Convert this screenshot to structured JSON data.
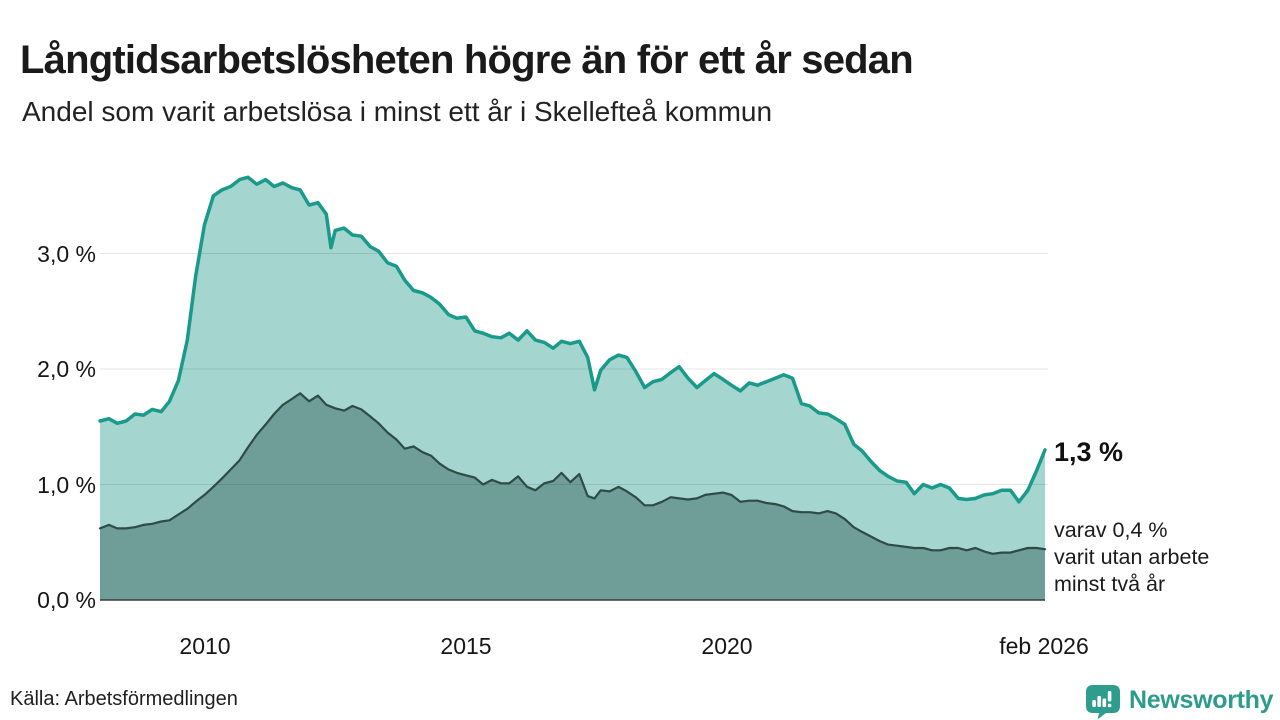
{
  "header": {
    "title": "Långtidsarbetslösheten högre än för ett år sedan",
    "subtitle": "Andel som varit arbetslösa i minst ett år i Skellefteå kommun"
  },
  "footer": {
    "source": "Källa: Arbetsförmedlingen",
    "brand": "Newsworthy",
    "brand_color": "#2e9c8d"
  },
  "chart_data": {
    "type": "area",
    "title": "Långtidsarbetslösheten högre än för ett år sedan",
    "subtitle": "Andel som varit arbetslösa i minst ett år i Skellefteå kommun",
    "unit": "%",
    "x_domain": [
      2008.0,
      2026.08
    ],
    "ylim": [
      0,
      3.8
    ],
    "grid": true,
    "y_gridlines": [
      1.0,
      2.0,
      3.0
    ],
    "yticks": [
      {
        "value": 3.0,
        "label": "3,0 %"
      },
      {
        "value": 2.0,
        "label": "2,0 %"
      },
      {
        "value": 1.0,
        "label": "1,0 %"
      },
      {
        "value": 0.0,
        "label": "0,0 %"
      }
    ],
    "xticks": [
      {
        "value": 2010,
        "label": "2010"
      },
      {
        "value": 2015,
        "label": "2015"
      },
      {
        "value": 2020,
        "label": "2020"
      },
      {
        "value": 2026.08,
        "label": "feb 2026"
      }
    ],
    "annotations": {
      "latest_total": "1,3 %",
      "secondary_lines": [
        "varav 0,4 %",
        "varit utan arbete",
        "minst två år"
      ]
    },
    "series": [
      {
        "name": "Arbetslösa minst ett år",
        "line_color": "#199a8b",
        "fill_color": "#a4d5ce",
        "line_width": 3.5,
        "latest_value": 1.3,
        "points": [
          [
            2008.0,
            1.55
          ],
          [
            2008.17,
            1.57
          ],
          [
            2008.33,
            1.53
          ],
          [
            2008.5,
            1.55
          ],
          [
            2008.67,
            1.61
          ],
          [
            2008.83,
            1.6
          ],
          [
            2009.0,
            1.65
          ],
          [
            2009.17,
            1.63
          ],
          [
            2009.33,
            1.72
          ],
          [
            2009.5,
            1.9
          ],
          [
            2009.67,
            2.25
          ],
          [
            2009.83,
            2.8
          ],
          [
            2010.0,
            3.25
          ],
          [
            2010.17,
            3.5
          ],
          [
            2010.33,
            3.55
          ],
          [
            2010.5,
            3.58
          ],
          [
            2010.67,
            3.64
          ],
          [
            2010.83,
            3.66
          ],
          [
            2011.0,
            3.6
          ],
          [
            2011.17,
            3.64
          ],
          [
            2011.33,
            3.58
          ],
          [
            2011.5,
            3.61
          ],
          [
            2011.67,
            3.57
          ],
          [
            2011.83,
            3.55
          ],
          [
            2012.0,
            3.42
          ],
          [
            2012.17,
            3.44
          ],
          [
            2012.33,
            3.34
          ],
          [
            2012.42,
            3.05
          ],
          [
            2012.5,
            3.2
          ],
          [
            2012.67,
            3.22
          ],
          [
            2012.83,
            3.16
          ],
          [
            2013.0,
            3.15
          ],
          [
            2013.17,
            3.06
          ],
          [
            2013.33,
            3.02
          ],
          [
            2013.5,
            2.92
          ],
          [
            2013.67,
            2.89
          ],
          [
            2013.83,
            2.77
          ],
          [
            2014.0,
            2.68
          ],
          [
            2014.17,
            2.66
          ],
          [
            2014.33,
            2.62
          ],
          [
            2014.5,
            2.56
          ],
          [
            2014.67,
            2.47
          ],
          [
            2014.83,
            2.44
          ],
          [
            2015.0,
            2.45
          ],
          [
            2015.17,
            2.33
          ],
          [
            2015.33,
            2.31
          ],
          [
            2015.5,
            2.28
          ],
          [
            2015.67,
            2.27
          ],
          [
            2015.83,
            2.31
          ],
          [
            2016.0,
            2.25
          ],
          [
            2016.17,
            2.33
          ],
          [
            2016.33,
            2.25
          ],
          [
            2016.5,
            2.23
          ],
          [
            2016.67,
            2.18
          ],
          [
            2016.83,
            2.24
          ],
          [
            2017.0,
            2.22
          ],
          [
            2017.17,
            2.24
          ],
          [
            2017.33,
            2.1
          ],
          [
            2017.46,
            1.82
          ],
          [
            2017.58,
            1.99
          ],
          [
            2017.75,
            2.08
          ],
          [
            2017.92,
            2.12
          ],
          [
            2018.08,
            2.1
          ],
          [
            2018.25,
            1.98
          ],
          [
            2018.42,
            1.84
          ],
          [
            2018.58,
            1.89
          ],
          [
            2018.75,
            1.91
          ],
          [
            2018.92,
            1.97
          ],
          [
            2019.08,
            2.02
          ],
          [
            2019.25,
            1.92
          ],
          [
            2019.42,
            1.84
          ],
          [
            2019.58,
            1.9
          ],
          [
            2019.75,
            1.96
          ],
          [
            2019.92,
            1.91
          ],
          [
            2020.08,
            1.86
          ],
          [
            2020.25,
            1.81
          ],
          [
            2020.42,
            1.88
          ],
          [
            2020.58,
            1.86
          ],
          [
            2020.75,
            1.89
          ],
          [
            2020.92,
            1.92
          ],
          [
            2021.08,
            1.95
          ],
          [
            2021.25,
            1.92
          ],
          [
            2021.42,
            1.7
          ],
          [
            2021.58,
            1.68
          ],
          [
            2021.75,
            1.62
          ],
          [
            2021.92,
            1.61
          ],
          [
            2022.08,
            1.57
          ],
          [
            2022.25,
            1.52
          ],
          [
            2022.42,
            1.35
          ],
          [
            2022.58,
            1.29
          ],
          [
            2022.75,
            1.2
          ],
          [
            2022.92,
            1.12
          ],
          [
            2023.08,
            1.07
          ],
          [
            2023.25,
            1.03
          ],
          [
            2023.42,
            1.02
          ],
          [
            2023.58,
            0.92
          ],
          [
            2023.75,
            1.0
          ],
          [
            2023.92,
            0.97
          ],
          [
            2024.08,
            1.0
          ],
          [
            2024.25,
            0.97
          ],
          [
            2024.42,
            0.88
          ],
          [
            2024.58,
            0.87
          ],
          [
            2024.75,
            0.88
          ],
          [
            2024.92,
            0.91
          ],
          [
            2025.08,
            0.92
          ],
          [
            2025.25,
            0.95
          ],
          [
            2025.42,
            0.95
          ],
          [
            2025.58,
            0.85
          ],
          [
            2025.75,
            0.95
          ],
          [
            2025.92,
            1.12
          ],
          [
            2026.08,
            1.3
          ]
        ]
      },
      {
        "name": "Arbetslösa minst två år",
        "line_color": "#2e4b46",
        "fill_color": "#6f9d97",
        "line_width": 2.2,
        "latest_value": 0.4,
        "points": [
          [
            2008.0,
            0.62
          ],
          [
            2008.17,
            0.65
          ],
          [
            2008.33,
            0.62
          ],
          [
            2008.5,
            0.62
          ],
          [
            2008.67,
            0.63
          ],
          [
            2008.83,
            0.65
          ],
          [
            2009.0,
            0.66
          ],
          [
            2009.17,
            0.68
          ],
          [
            2009.33,
            0.69
          ],
          [
            2009.5,
            0.74
          ],
          [
            2009.67,
            0.79
          ],
          [
            2009.83,
            0.85
          ],
          [
            2010.0,
            0.91
          ],
          [
            2010.17,
            0.98
          ],
          [
            2010.33,
            1.05
          ],
          [
            2010.5,
            1.13
          ],
          [
            2010.67,
            1.21
          ],
          [
            2010.83,
            1.32
          ],
          [
            2011.0,
            1.43
          ],
          [
            2011.17,
            1.52
          ],
          [
            2011.33,
            1.61
          ],
          [
            2011.5,
            1.69
          ],
          [
            2011.67,
            1.74
          ],
          [
            2011.83,
            1.79
          ],
          [
            2012.0,
            1.72
          ],
          [
            2012.17,
            1.77
          ],
          [
            2012.33,
            1.69
          ],
          [
            2012.5,
            1.66
          ],
          [
            2012.67,
            1.64
          ],
          [
            2012.83,
            1.68
          ],
          [
            2013.0,
            1.65
          ],
          [
            2013.17,
            1.59
          ],
          [
            2013.33,
            1.53
          ],
          [
            2013.5,
            1.45
          ],
          [
            2013.67,
            1.39
          ],
          [
            2013.83,
            1.31
          ],
          [
            2014.0,
            1.33
          ],
          [
            2014.17,
            1.28
          ],
          [
            2014.33,
            1.25
          ],
          [
            2014.5,
            1.18
          ],
          [
            2014.67,
            1.13
          ],
          [
            2014.83,
            1.1
          ],
          [
            2015.0,
            1.08
          ],
          [
            2015.17,
            1.06
          ],
          [
            2015.33,
            1.0
          ],
          [
            2015.5,
            1.04
          ],
          [
            2015.67,
            1.01
          ],
          [
            2015.83,
            1.01
          ],
          [
            2016.0,
            1.07
          ],
          [
            2016.17,
            0.98
          ],
          [
            2016.33,
            0.95
          ],
          [
            2016.5,
            1.01
          ],
          [
            2016.67,
            1.03
          ],
          [
            2016.83,
            1.1
          ],
          [
            2017.0,
            1.02
          ],
          [
            2017.17,
            1.09
          ],
          [
            2017.33,
            0.9
          ],
          [
            2017.46,
            0.88
          ],
          [
            2017.58,
            0.95
          ],
          [
            2017.75,
            0.94
          ],
          [
            2017.92,
            0.98
          ],
          [
            2018.08,
            0.94
          ],
          [
            2018.25,
            0.89
          ],
          [
            2018.42,
            0.82
          ],
          [
            2018.58,
            0.82
          ],
          [
            2018.75,
            0.85
          ],
          [
            2018.92,
            0.89
          ],
          [
            2019.08,
            0.88
          ],
          [
            2019.25,
            0.87
          ],
          [
            2019.42,
            0.88
          ],
          [
            2019.58,
            0.91
          ],
          [
            2019.75,
            0.92
          ],
          [
            2019.92,
            0.93
          ],
          [
            2020.08,
            0.91
          ],
          [
            2020.25,
            0.85
          ],
          [
            2020.42,
            0.86
          ],
          [
            2020.58,
            0.86
          ],
          [
            2020.75,
            0.84
          ],
          [
            2020.92,
            0.83
          ],
          [
            2021.08,
            0.81
          ],
          [
            2021.25,
            0.77
          ],
          [
            2021.42,
            0.76
          ],
          [
            2021.58,
            0.76
          ],
          [
            2021.75,
            0.75
          ],
          [
            2021.92,
            0.77
          ],
          [
            2022.08,
            0.75
          ],
          [
            2022.25,
            0.7
          ],
          [
            2022.42,
            0.63
          ],
          [
            2022.58,
            0.59
          ],
          [
            2022.75,
            0.55
          ],
          [
            2022.92,
            0.51
          ],
          [
            2023.08,
            0.48
          ],
          [
            2023.25,
            0.47
          ],
          [
            2023.42,
            0.46
          ],
          [
            2023.58,
            0.45
          ],
          [
            2023.75,
            0.45
          ],
          [
            2023.92,
            0.43
          ],
          [
            2024.08,
            0.43
          ],
          [
            2024.25,
            0.45
          ],
          [
            2024.42,
            0.45
          ],
          [
            2024.58,
            0.43
          ],
          [
            2024.75,
            0.45
          ],
          [
            2024.92,
            0.42
          ],
          [
            2025.08,
            0.4
          ],
          [
            2025.25,
            0.41
          ],
          [
            2025.42,
            0.41
          ],
          [
            2025.58,
            0.43
          ],
          [
            2025.75,
            0.45
          ],
          [
            2025.92,
            0.45
          ],
          [
            2026.08,
            0.44
          ]
        ]
      }
    ]
  }
}
